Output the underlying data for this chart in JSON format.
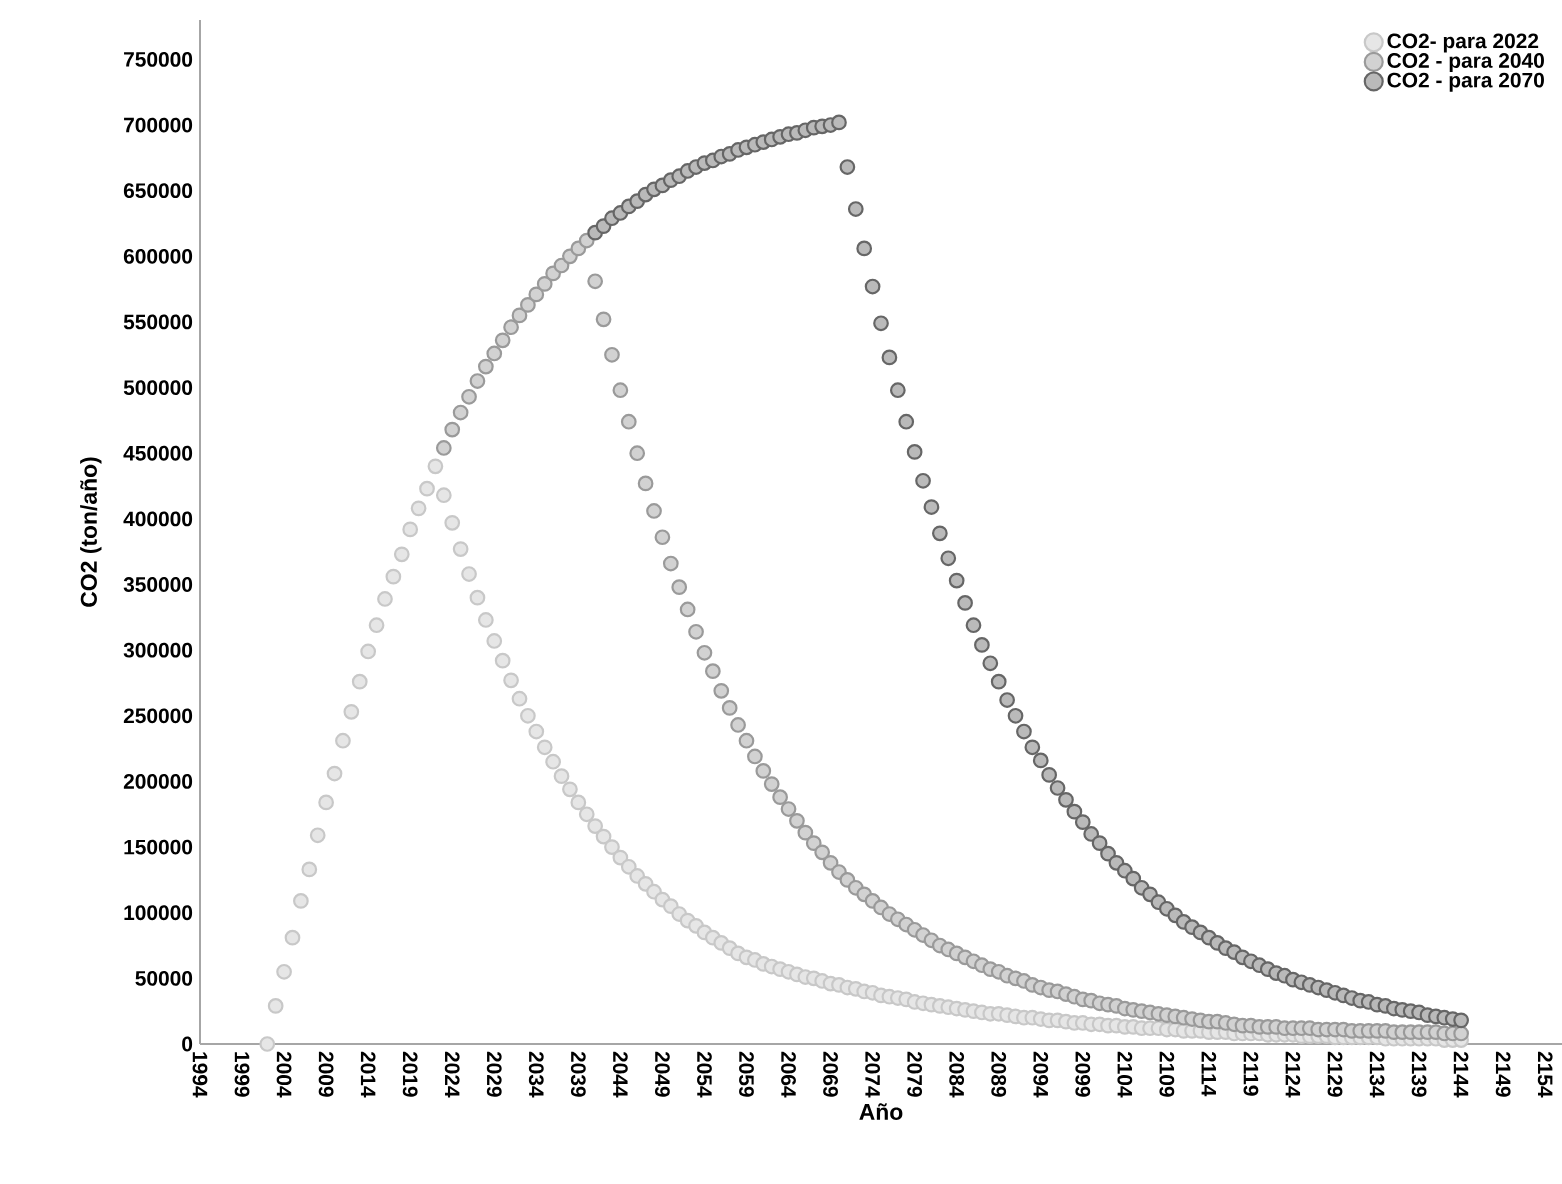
{
  "chart_data": {
    "type": "scatter",
    "xlabel": "Año",
    "ylabel": "CO2 (ton/año)",
    "x": [
      2002,
      2003,
      2004,
      2005,
      2006,
      2007,
      2008,
      2009,
      2010,
      2011,
      2012,
      2013,
      2014,
      2015,
      2016,
      2017,
      2018,
      2019,
      2020,
      2021,
      2022,
      2023,
      2024,
      2025,
      2026,
      2027,
      2028,
      2029,
      2030,
      2031,
      2032,
      2033,
      2034,
      2035,
      2036,
      2037,
      2038,
      2039,
      2040,
      2041,
      2042,
      2043,
      2044,
      2045,
      2046,
      2047,
      2048,
      2049,
      2050,
      2051,
      2052,
      2053,
      2054,
      2055,
      2056,
      2057,
      2058,
      2059,
      2060,
      2061,
      2062,
      2063,
      2064,
      2065,
      2066,
      2067,
      2068,
      2069,
      2070,
      2071,
      2072,
      2073,
      2074,
      2075,
      2076,
      2077,
      2078,
      2079,
      2080,
      2081,
      2082,
      2083,
      2084,
      2085,
      2086,
      2087,
      2088,
      2089,
      2090,
      2091,
      2092,
      2093,
      2094,
      2095,
      2096,
      2097,
      2098,
      2099,
      2100,
      2101,
      2102,
      2103,
      2104,
      2105,
      2106,
      2107,
      2108,
      2109,
      2110,
      2111,
      2112,
      2113,
      2114,
      2115,
      2116,
      2117,
      2118,
      2119,
      2120,
      2121,
      2122,
      2123,
      2124,
      2125,
      2126,
      2127,
      2128,
      2129,
      2130,
      2131,
      2132,
      2133,
      2134,
      2135,
      2136,
      2137,
      2138,
      2139,
      2140,
      2141,
      2142,
      2143,
      2144
    ],
    "series": [
      {
        "name": "CO2- para 2022",
        "color": "#c8c8c8",
        "values": [
          0,
          29000,
          55000,
          81000,
          109000,
          133000,
          159000,
          184000,
          206000,
          231000,
          253000,
          276000,
          299000,
          319000,
          339000,
          356000,
          373000,
          392000,
          408000,
          423000,
          440000,
          418000,
          397000,
          377000,
          358000,
          340000,
          323000,
          307000,
          292000,
          277000,
          263000,
          250000,
          238000,
          226000,
          215000,
          204000,
          194000,
          184000,
          175000,
          166000,
          158000,
          150000,
          142000,
          135000,
          128000,
          122000,
          116000,
          110000,
          105000,
          99000,
          94000,
          90000,
          85000,
          81000,
          77000,
          73000,
          69000,
          66000,
          64000,
          61000,
          59000,
          57000,
          55000,
          53000,
          51000,
          50000,
          48000,
          46000,
          45000,
          43000,
          42000,
          40000,
          39000,
          37000,
          36000,
          35000,
          34000,
          32000,
          31000,
          30000,
          29000,
          28000,
          27000,
          26000,
          25000,
          24000,
          23000,
          23000,
          22000,
          21000,
          20000,
          20000,
          19000,
          18000,
          18000,
          17000,
          16000,
          16000,
          15000,
          15000,
          14000,
          14000,
          13000,
          13000,
          12000,
          12000,
          12000,
          11000,
          11000,
          10000,
          10000,
          10000,
          9000,
          9000,
          9000,
          8000,
          8000,
          8000,
          8000,
          7000,
          7000,
          7000,
          7000,
          6000,
          6000,
          6000,
          6000,
          5000,
          5000,
          5000,
          5000,
          5000,
          5000,
          4000,
          4000,
          4000,
          4000,
          4000,
          4000,
          4000,
          3000,
          3000,
          3000
        ]
      },
      {
        "name": "CO2 - para 2040",
        "color": "#9a9a9a",
        "values": [
          null,
          null,
          null,
          null,
          null,
          null,
          null,
          null,
          null,
          null,
          null,
          null,
          null,
          null,
          null,
          null,
          null,
          null,
          null,
          null,
          null,
          454000,
          468000,
          481000,
          493000,
          505000,
          516000,
          526000,
          536000,
          546000,
          555000,
          563000,
          571000,
          579000,
          587000,
          593000,
          600000,
          606000,
          612000,
          581000,
          552000,
          525000,
          498000,
          474000,
          450000,
          427000,
          406000,
          386000,
          366000,
          348000,
          331000,
          314000,
          298000,
          284000,
          269000,
          256000,
          243000,
          231000,
          219000,
          208000,
          198000,
          188000,
          179000,
          170000,
          161000,
          153000,
          146000,
          138000,
          131000,
          125000,
          119000,
          114000,
          109000,
          104000,
          99000,
          95000,
          91000,
          87000,
          83000,
          79000,
          75000,
          72000,
          69000,
          66000,
          63000,
          60000,
          57000,
          55000,
          52000,
          50000,
          48000,
          45000,
          43000,
          41000,
          40000,
          38000,
          36000,
          34000,
          33000,
          31000,
          30000,
          29000,
          27000,
          26000,
          25000,
          24000,
          23000,
          22000,
          21000,
          20000,
          19000,
          18000,
          17000,
          17000,
          16000,
          15000,
          14000,
          14000,
          13000,
          13000,
          13000,
          12000,
          12000,
          12000,
          12000,
          11000,
          11000,
          11000,
          11000,
          10000,
          10000,
          10000,
          10000,
          10000,
          9000,
          9000,
          9000,
          9000,
          9000,
          9000,
          8000,
          8000,
          8000
        ]
      },
      {
        "name": "CO2 - para 2070",
        "color": "#666666",
        "values": [
          null,
          null,
          null,
          null,
          null,
          null,
          null,
          null,
          null,
          null,
          null,
          null,
          null,
          null,
          null,
          null,
          null,
          null,
          null,
          null,
          null,
          null,
          null,
          null,
          null,
          null,
          null,
          null,
          null,
          null,
          null,
          null,
          null,
          null,
          null,
          null,
          null,
          null,
          null,
          618000,
          623000,
          629000,
          633000,
          638000,
          642000,
          647000,
          651000,
          654000,
          658000,
          661000,
          665000,
          668000,
          671000,
          673000,
          676000,
          678000,
          681000,
          683000,
          685000,
          687000,
          689000,
          691000,
          693000,
          694000,
          696000,
          698000,
          699000,
          700000,
          702000,
          668000,
          636000,
          606000,
          577000,
          549000,
          523000,
          498000,
          474000,
          451000,
          429000,
          409000,
          389000,
          370000,
          353000,
          336000,
          319000,
          304000,
          290000,
          276000,
          262000,
          250000,
          238000,
          226000,
          216000,
          205000,
          195000,
          186000,
          177000,
          169000,
          160000,
          153000,
          145000,
          138000,
          132000,
          126000,
          119000,
          114000,
          108000,
          103000,
          98000,
          93000,
          89000,
          85000,
          81000,
          77000,
          73000,
          70000,
          66000,
          63000,
          60000,
          57000,
          54000,
          52000,
          49000,
          47000,
          45000,
          43000,
          41000,
          39000,
          37000,
          35000,
          33000,
          32000,
          30000,
          29000,
          27000,
          26000,
          25000,
          24000,
          22000,
          21000,
          20000,
          19000,
          18000
        ]
      }
    ],
    "xlim": [
      1994,
      2156
    ],
    "xticks": [
      1994,
      1999,
      2004,
      2009,
      2014,
      2019,
      2024,
      2029,
      2034,
      2039,
      2044,
      2049,
      2054,
      2059,
      2064,
      2069,
      2074,
      2079,
      2084,
      2089,
      2094,
      2099,
      2104,
      2109,
      2114,
      2119,
      2124,
      2129,
      2134,
      2139,
      2144,
      2149,
      2154
    ],
    "ylim": [
      0,
      780000
    ],
    "yticks": [
      0,
      50000,
      100000,
      150000,
      200000,
      250000,
      300000,
      350000,
      400000,
      450000,
      500000,
      550000,
      600000,
      650000,
      700000,
      750000
    ],
    "legend": "top right"
  }
}
